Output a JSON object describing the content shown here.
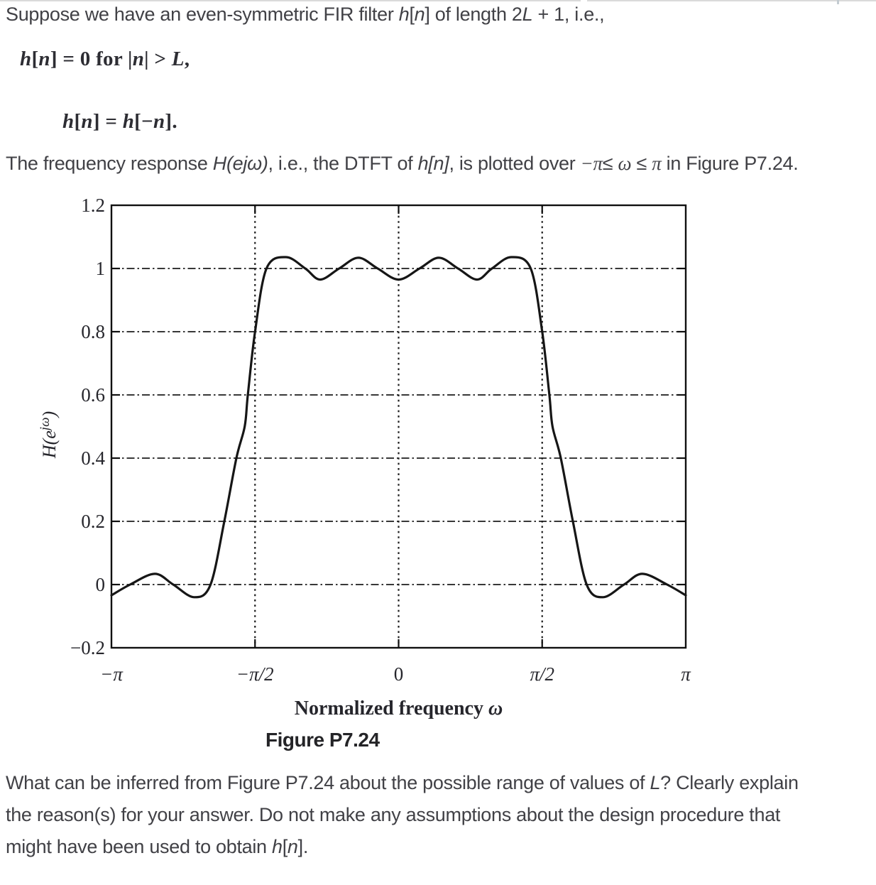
{
  "colors": {
    "curve": "#161616",
    "grid": "#1c1c1c",
    "axis_border": "#101010",
    "body_text": "#414146",
    "top_rule": "#dadada"
  },
  "intro": {
    "runs": [
      {
        "t": "Suppose we have an even-symmetric FIR filter "
      },
      {
        "t": "h",
        "i": 1
      },
      {
        "t": "["
      },
      {
        "t": "n",
        "i": 1
      },
      {
        "t": "]"
      },
      {
        "t": " of length 2"
      },
      {
        "t": "L",
        "i": 1
      },
      {
        "t": " + 1, i.e.,"
      }
    ]
  },
  "equation_support": {
    "runs": [
      {
        "t": "h",
        "i": 1
      },
      {
        "t": "["
      },
      {
        "t": "n",
        "i": 1
      },
      {
        "t": "] = 0 for |"
      },
      {
        "t": "n",
        "i": 1
      },
      {
        "t": "| > "
      },
      {
        "t": "L",
        "i": 1
      },
      {
        "t": ","
      }
    ]
  },
  "equation_symmetry": {
    "runs": [
      {
        "t": "h",
        "i": 1
      },
      {
        "t": "["
      },
      {
        "t": "n",
        "i": 1
      },
      {
        "t": "] = "
      },
      {
        "t": "h",
        "i": 1
      },
      {
        "t": "[−"
      },
      {
        "t": "n",
        "i": 1
      },
      {
        "t": "]."
      }
    ]
  },
  "freq_line": {
    "runs": [
      {
        "t": "The frequency response "
      },
      {
        "t": "H(ejω)",
        "i": 1
      },
      {
        "t": ", i.e., the DTFT of "
      },
      {
        "t": "h[n]",
        "i": 1
      },
      {
        "t": ", is plotted over "
      },
      {
        "t": "−π",
        "i": 1,
        "sf": 1
      },
      {
        "t": "≤ "
      },
      {
        "t": "ω",
        "i": 1,
        "sf": 1
      },
      {
        "t": " ≤ "
      },
      {
        "t": "π",
        "i": 1,
        "sf": 1
      },
      {
        "t": " in Figure P7.24."
      }
    ]
  },
  "figure": {
    "caption": "Figure P7.24"
  },
  "question": {
    "line1": [
      {
        "t": "What can be inferred from Figure P7.24 about the possible range of values of "
      },
      {
        "t": "L",
        "i": 1
      },
      {
        "t": "? Clearly explain"
      }
    ],
    "line2": [
      {
        "t": "the reason(s) for your answer. Do not make any assumptions about the design procedure that"
      }
    ],
    "line3": [
      {
        "t": "might have been used to obtain "
      },
      {
        "t": "h",
        "i": 1
      },
      {
        "t": "["
      },
      {
        "t": "n",
        "i": 1
      },
      {
        "t": "]."
      }
    ]
  },
  "chart_data": {
    "type": "line",
    "title": "",
    "xlabel_runs": [
      {
        "t": "Normalized frequency ",
        "b": 1
      },
      {
        "t": "ω",
        "b": 1,
        "i": 1
      }
    ],
    "ylabel_runs": [
      {
        "t": "H",
        "i": 1
      },
      {
        "t": "(e",
        "i": 1
      },
      {
        "t": "jω",
        "i": 1,
        "sup": 1
      },
      {
        "t": ")",
        "i": 1
      }
    ],
    "xlim_in_pi": [
      -1,
      1
    ],
    "ylim": [
      -0.2,
      1.2
    ],
    "x_ticks": [
      {
        "pi": -1,
        "label": "−π"
      },
      {
        "pi": -0.5,
        "label": "−π/2"
      },
      {
        "pi": 0,
        "label": "0"
      },
      {
        "pi": 0.5,
        "label": "π/2"
      },
      {
        "pi": 1,
        "label": "π"
      }
    ],
    "y_ticks": [
      {
        "v": 1.2,
        "label": "1.2"
      },
      {
        "v": 1,
        "label": "1"
      },
      {
        "v": 0.8,
        "label": "0.8"
      },
      {
        "v": 0.6,
        "label": "0.6"
      },
      {
        "v": 0.4,
        "label": "0.4"
      },
      {
        "v": 0.2,
        "label": "0.2"
      },
      {
        "v": 0,
        "label": "0"
      },
      {
        "v": -0.2,
        "label": "−0.2"
      }
    ],
    "grid": {
      "horizontal_at": [
        0,
        0.2,
        0.4,
        0.6,
        0.8,
        1.0
      ],
      "vertical_at_pi": [
        -0.5,
        0,
        0.5
      ]
    },
    "series": [
      {
        "name": "H(e^jω)",
        "x_over_pi": [
          -1,
          -0.935,
          -0.849,
          -0.785,
          -0.712,
          -0.655,
          -0.607,
          -0.565,
          -0.536,
          -0.525,
          -0.5,
          -0.46,
          -0.392,
          -0.325,
          -0.273,
          -0.207,
          -0.14,
          -0.073,
          0,
          0.073,
          0.14,
          0.207,
          0.273,
          0.325,
          0.392,
          0.46,
          0.5,
          0.525,
          0.536,
          0.565,
          0.607,
          0.655,
          0.712,
          0.785,
          0.849,
          0.935,
          1
        ],
        "y": [
          -0.034,
          0,
          0.034,
          0,
          -0.04,
          0,
          0.2,
          0.4,
          0.5,
          0.6,
          0.8,
          1.0,
          1.036,
          1.0,
          0.965,
          1.0,
          1.034,
          1.0,
          0.965,
          1.0,
          1.034,
          1.0,
          0.965,
          1.0,
          1.036,
          1.0,
          0.8,
          0.6,
          0.5,
          0.4,
          0.2,
          0,
          -0.04,
          0,
          0.034,
          0,
          -0.034
        ]
      }
    ]
  }
}
